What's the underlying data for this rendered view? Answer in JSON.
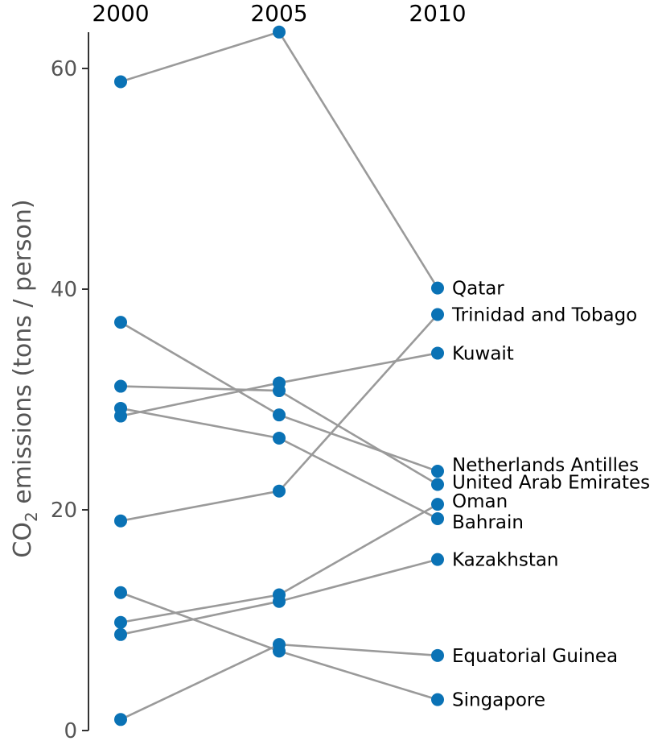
{
  "chart_data": {
    "type": "slope",
    "x": [
      "2000",
      "2005",
      "2010"
    ],
    "ylabel": "CO2 emissions (tons / person)",
    "ylabel_main": "CO",
    "ylabel_sub": "2",
    "ylabel_rest": " emissions (tons / person)",
    "ylim": [
      0,
      64
    ],
    "yticks": [
      0,
      20,
      40,
      60
    ],
    "ytick_labels": [
      "0",
      "20",
      "40",
      "60"
    ],
    "colors": {
      "point": "#0a72b5",
      "line": "#9a9a9a",
      "axis": "#333333"
    },
    "series": [
      {
        "name": "Qatar",
        "values": [
          58.8,
          63.3,
          40.1
        ]
      },
      {
        "name": "Trinidad and Tobago",
        "values": [
          19.0,
          21.7,
          37.7
        ]
      },
      {
        "name": "Kuwait",
        "values": [
          28.5,
          31.5,
          34.2
        ]
      },
      {
        "name": "Netherlands Antilles",
        "values": [
          37.0,
          28.6,
          23.5
        ]
      },
      {
        "name": "United Arab Emirates",
        "values": [
          31.2,
          30.8,
          22.3
        ]
      },
      {
        "name": "Oman",
        "values": [
          9.8,
          12.3,
          20.5
        ]
      },
      {
        "name": "Bahrain",
        "values": [
          29.2,
          26.5,
          19.2
        ]
      },
      {
        "name": "Kazakhstan",
        "values": [
          8.7,
          11.7,
          15.5
        ]
      },
      {
        "name": "Equatorial Guinea",
        "values": [
          1.0,
          7.8,
          6.8
        ]
      },
      {
        "name": "Singapore",
        "values": [
          12.5,
          7.2,
          2.8
        ]
      }
    ]
  }
}
